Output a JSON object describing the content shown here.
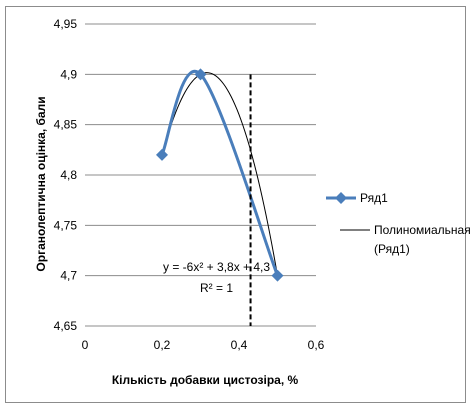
{
  "chart_data": {
    "type": "scatter",
    "title": "",
    "xlabel": "Кількість добавки цистозіра, %",
    "ylabel": "Органолептична оцінка, бали",
    "xlim": [
      0,
      0.6
    ],
    "ylim": [
      4.65,
      4.95
    ],
    "x_ticks": [
      "0",
      "0,2",
      "0,4",
      "0,6"
    ],
    "y_ticks": [
      "4,65",
      "4,7",
      "4,75",
      "4,8",
      "4,85",
      "4,9",
      "4,95"
    ],
    "grid": "horizontal",
    "legend_position": "right",
    "series": [
      {
        "name": "Ряд1",
        "color": "#4a7ebb",
        "style": "smoothed line with diamond markers",
        "x": [
          0.2,
          0.3,
          0.5
        ],
        "y": [
          4.82,
          4.9,
          4.7
        ]
      }
    ],
    "trendline": {
      "name": "Полиномиальная (Ряд1)",
      "legend_lines": [
        "Полиномиальная",
        "(Ряд1)"
      ],
      "color": "#000000",
      "type": "polynomial",
      "coefficients": [
        -6,
        3.8,
        4.3
      ],
      "equation": "y = -6x² + 3,8x + 4,3",
      "r_squared": "R² = 1"
    },
    "reference_line": {
      "style": "dashed vertical",
      "color": "#000000",
      "x": 0.43
    }
  }
}
